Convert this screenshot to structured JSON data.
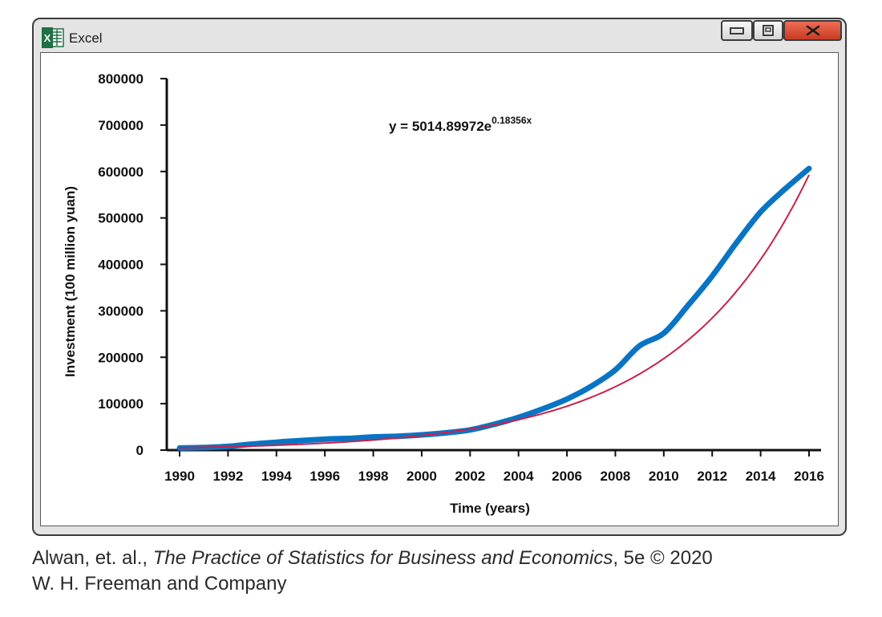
{
  "window": {
    "app_title": "Excel",
    "app_icon": "excel-logo-icon",
    "controls": {
      "minimize_icon": "minimize-icon",
      "maximize_icon": "maximize-icon",
      "close_icon": "close-icon"
    },
    "close_color": "#d9502f"
  },
  "chart_data": {
    "type": "line",
    "xlabel": "Time (years)",
    "ylabel": "Investment (100 million yuan)",
    "xlim": [
      1990,
      2016
    ],
    "ylim": [
      0,
      800000
    ],
    "x_ticks": [
      1990,
      1992,
      1994,
      1996,
      1998,
      2000,
      2002,
      2004,
      2006,
      2008,
      2010,
      2012,
      2014,
      2016
    ],
    "y_ticks": [
      0,
      100000,
      200000,
      300000,
      400000,
      500000,
      600000,
      700000,
      800000
    ],
    "grid": false,
    "legend": "none",
    "annotation": {
      "prefix": "y = 5014.89972e",
      "exponent": "0.18356x"
    },
    "series": [
      {
        "kind": "data",
        "color": "#0a74c4",
        "x": [
          1990,
          1991,
          1992,
          1993,
          1994,
          1995,
          1996,
          1997,
          1998,
          1999,
          2000,
          2001,
          2002,
          2003,
          2004,
          2005,
          2006,
          2007,
          2008,
          2009,
          2010,
          2011,
          2012,
          2013,
          2014,
          2015,
          2016
        ],
        "y": [
          4500,
          5600,
          8000,
          13000,
          17000,
          20500,
          23500,
          25300,
          28400,
          29900,
          32900,
          37200,
          43500,
          55600,
          70500,
          88800,
          109900,
          137300,
          172800,
          224600,
          251700,
          311500,
          374700,
          446300,
          512800,
          561900,
          606500
        ]
      },
      {
        "kind": "trendline",
        "color": "#cc1f4a",
        "fit": {
          "a": 5014.89972,
          "b": 0.18356,
          "x0": 1990
        }
      }
    ]
  },
  "caption": {
    "line1_prefix": "Alwan, et. al., ",
    "line1_title": "The Practice of Statistics for Business and Economics",
    "line1_suffix": ", 5e © 2020",
    "line2": "W. H. Freeman and Company"
  }
}
